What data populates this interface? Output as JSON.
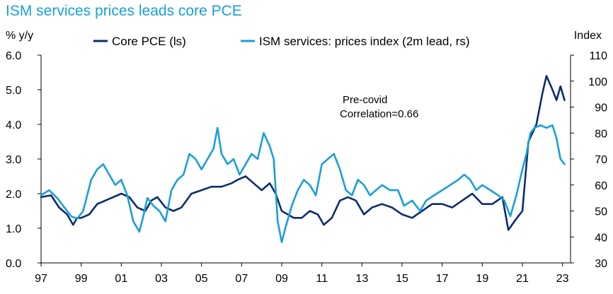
{
  "chart_data": {
    "type": "line",
    "title": "ISM services prices leads core PCE",
    "ylabel_left": "% y/y",
    "ylabel_right": "Index",
    "xlim": [
      1997,
      2023.4
    ],
    "ylim_left": [
      0,
      6
    ],
    "ylim_right": [
      30,
      110
    ],
    "x_ticks": [
      1997,
      1999,
      2001,
      2003,
      2005,
      2007,
      2009,
      2011,
      2013,
      2015,
      2017,
      2019,
      2021,
      2023
    ],
    "x_tick_labels": [
      "97",
      "99",
      "01",
      "03",
      "05",
      "07",
      "09",
      "11",
      "13",
      "15",
      "17",
      "19",
      "21",
      "23"
    ],
    "y_left_ticks": [
      "0.0",
      "1.0",
      "2.0",
      "3.0",
      "4.0",
      "5.0",
      "6.0"
    ],
    "y_right_ticks": [
      "30",
      "40",
      "50",
      "60",
      "70",
      "80",
      "90",
      "100",
      "110"
    ],
    "legend": {
      "placement": "top"
    },
    "annotation": {
      "lines": [
        "Pre-covid",
        "Correlation=0.66"
      ]
    },
    "series": [
      {
        "name": "Core PCE (ls)",
        "axis": "left",
        "color": "#0b2d6b",
        "x": [
          1997.0,
          1997.5,
          1997.9,
          1998.3,
          1998.6,
          1998.8,
          1999.0,
          1999.4,
          1999.8,
          2000.2,
          2000.6,
          2001.0,
          2001.4,
          2001.8,
          2002.2,
          2002.5,
          2002.8,
          2003.2,
          2003.6,
          2004.0,
          2004.5,
          2005.0,
          2005.5,
          2006.0,
          2006.5,
          2006.8,
          2007.2,
          2007.6,
          2008.0,
          2008.4,
          2008.7,
          2009.0,
          2009.3,
          2009.6,
          2010.0,
          2010.4,
          2010.8,
          2011.1,
          2011.5,
          2011.9,
          2012.3,
          2012.7,
          2013.1,
          2013.5,
          2014.0,
          2014.5,
          2015.0,
          2015.5,
          2016.0,
          2016.5,
          2017.0,
          2017.5,
          2018.0,
          2018.5,
          2019.0,
          2019.5,
          2020.0,
          2020.3,
          2020.6,
          2021.0,
          2021.3,
          2021.7,
          2022.0,
          2022.2,
          2022.5,
          2022.7,
          2022.9,
          2023.1
        ],
        "values": [
          1.9,
          1.95,
          1.6,
          1.4,
          1.1,
          1.3,
          1.3,
          1.4,
          1.7,
          1.8,
          1.9,
          2.0,
          1.9,
          1.6,
          1.5,
          1.8,
          1.9,
          1.6,
          1.5,
          1.6,
          2.0,
          2.1,
          2.2,
          2.2,
          2.3,
          2.4,
          2.5,
          2.3,
          2.1,
          2.3,
          2.0,
          1.5,
          1.4,
          1.3,
          1.3,
          1.5,
          1.4,
          1.1,
          1.3,
          1.8,
          1.9,
          1.8,
          1.4,
          1.6,
          1.7,
          1.6,
          1.4,
          1.3,
          1.5,
          1.7,
          1.7,
          1.6,
          1.8,
          2.0,
          1.7,
          1.7,
          1.9,
          0.95,
          1.2,
          1.5,
          3.5,
          4.0,
          4.9,
          5.4,
          5.0,
          4.7,
          5.1,
          4.7
        ]
      },
      {
        "name": "ISM services: prices index (2m lead, rs)",
        "axis": "right",
        "color": "#1a9fd8",
        "x": [
          1997.0,
          1997.4,
          1997.8,
          1998.2,
          1998.5,
          1998.8,
          1999.1,
          1999.5,
          1999.8,
          2000.1,
          2000.4,
          2000.7,
          2001.0,
          2001.3,
          2001.6,
          2001.9,
          2002.1,
          2002.3,
          2002.6,
          2002.9,
          2003.2,
          2003.5,
          2003.8,
          2004.1,
          2004.4,
          2004.7,
          2005.0,
          2005.3,
          2005.6,
          2005.8,
          2006.0,
          2006.3,
          2006.6,
          2006.9,
          2007.2,
          2007.5,
          2007.8,
          2008.1,
          2008.4,
          2008.6,
          2008.8,
          2009.0,
          2009.2,
          2009.5,
          2009.8,
          2010.1,
          2010.4,
          2010.7,
          2011.0,
          2011.3,
          2011.6,
          2011.9,
          2012.2,
          2012.5,
          2012.8,
          2013.1,
          2013.4,
          2013.7,
          2014.0,
          2014.4,
          2014.8,
          2015.1,
          2015.5,
          2015.9,
          2016.2,
          2016.6,
          2017.0,
          2017.4,
          2017.8,
          2018.1,
          2018.4,
          2018.7,
          2019.0,
          2019.4,
          2019.8,
          2020.1,
          2020.4,
          2020.7,
          2021.0,
          2021.2,
          2021.4,
          2021.6,
          2021.9,
          2022.2,
          2022.5,
          2022.7,
          2022.9,
          2023.1
        ],
        "values": [
          56,
          58,
          55,
          51,
          48,
          47,
          50,
          62,
          66,
          68,
          64,
          60,
          62,
          56,
          46,
          42,
          48,
          55,
          52,
          50,
          46,
          58,
          62,
          64,
          72,
          70,
          66,
          70,
          74,
          82,
          72,
          68,
          70,
          64,
          68,
          72,
          70,
          80,
          75,
          70,
          46,
          38,
          44,
          52,
          58,
          62,
          60,
          56,
          68,
          70,
          72,
          66,
          58,
          56,
          62,
          60,
          56,
          58,
          60,
          58,
          58,
          52,
          54,
          50,
          54,
          56,
          58,
          60,
          62,
          64,
          62,
          58,
          60,
          58,
          56,
          54,
          48,
          56,
          66,
          72,
          80,
          82,
          83,
          82,
          83,
          78,
          70,
          68
        ]
      }
    ]
  }
}
